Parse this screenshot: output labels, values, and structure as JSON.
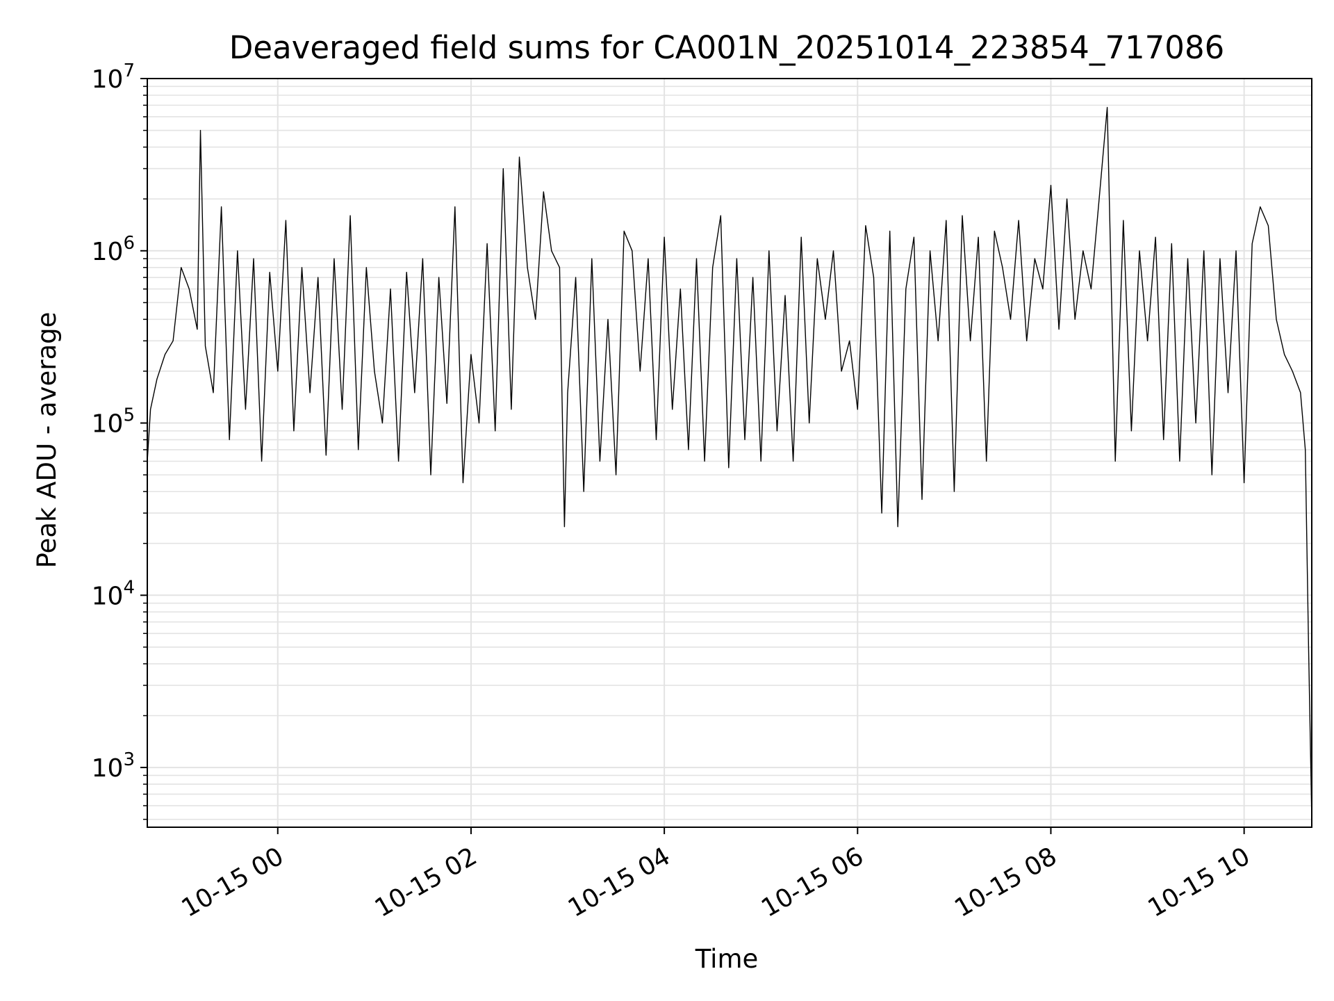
{
  "chart_data": {
    "type": "line",
    "title": "Deaveraged field sums for CA001N_20251014_223854_717086",
    "xlabel": "Time",
    "ylabel": "Peak ADU - average",
    "yscale": "log",
    "ylim": [
      450,
      10000000
    ],
    "xlim": [
      "2025-10-14 22:39",
      "2025-10-15 10:42"
    ],
    "grid": true,
    "line_color": "#000000",
    "grid_color": "#e3e3e3",
    "x_ticks": [
      "2025-10-15 00:00",
      "2025-10-15 02:00",
      "2025-10-15 04:00",
      "2025-10-15 06:00",
      "2025-10-15 08:00",
      "2025-10-15 10:00"
    ],
    "x_tick_labels": [
      "10-15 00",
      "10-15 02",
      "10-15 04",
      "10-15 06",
      "10-15 08",
      "10-15 10"
    ],
    "y_ticks": [
      1000,
      10000,
      100000,
      1000000,
      10000000
    ],
    "y_tick_labels": [
      {
        "base": "10",
        "exp": "3"
      },
      {
        "base": "10",
        "exp": "4"
      },
      {
        "base": "10",
        "exp": "5"
      },
      {
        "base": "10",
        "exp": "6"
      },
      {
        "base": "10",
        "exp": "7"
      }
    ],
    "x": [
      "2025-10-14 22:39",
      "2025-10-14 22:41",
      "2025-10-14 22:45",
      "2025-10-14 22:50",
      "2025-10-14 22:55",
      "2025-10-14 23:00",
      "2025-10-14 23:05",
      "2025-10-14 23:10",
      "2025-10-14 23:12",
      "2025-10-14 23:15",
      "2025-10-14 23:20",
      "2025-10-14 23:25",
      "2025-10-14 23:30",
      "2025-10-14 23:35",
      "2025-10-14 23:40",
      "2025-10-14 23:45",
      "2025-10-14 23:50",
      "2025-10-14 23:55",
      "2025-10-15 00:00",
      "2025-10-15 00:05",
      "2025-10-15 00:10",
      "2025-10-15 00:15",
      "2025-10-15 00:20",
      "2025-10-15 00:25",
      "2025-10-15 00:30",
      "2025-10-15 00:35",
      "2025-10-15 00:40",
      "2025-10-15 00:45",
      "2025-10-15 00:50",
      "2025-10-15 00:55",
      "2025-10-15 01:00",
      "2025-10-15 01:05",
      "2025-10-15 01:10",
      "2025-10-15 01:15",
      "2025-10-15 01:20",
      "2025-10-15 01:25",
      "2025-10-15 01:30",
      "2025-10-15 01:35",
      "2025-10-15 01:40",
      "2025-10-15 01:45",
      "2025-10-15 01:50",
      "2025-10-15 01:55",
      "2025-10-15 02:00",
      "2025-10-15 02:05",
      "2025-10-15 02:10",
      "2025-10-15 02:15",
      "2025-10-15 02:20",
      "2025-10-15 02:25",
      "2025-10-15 02:30",
      "2025-10-15 02:35",
      "2025-10-15 02:40",
      "2025-10-15 02:45",
      "2025-10-15 02:50",
      "2025-10-15 02:55",
      "2025-10-15 02:58",
      "2025-10-15 03:00",
      "2025-10-15 03:05",
      "2025-10-15 03:10",
      "2025-10-15 03:15",
      "2025-10-15 03:20",
      "2025-10-15 03:25",
      "2025-10-15 03:30",
      "2025-10-15 03:35",
      "2025-10-15 03:40",
      "2025-10-15 03:45",
      "2025-10-15 03:50",
      "2025-10-15 03:55",
      "2025-10-15 04:00",
      "2025-10-15 04:05",
      "2025-10-15 04:10",
      "2025-10-15 04:15",
      "2025-10-15 04:20",
      "2025-10-15 04:25",
      "2025-10-15 04:30",
      "2025-10-15 04:35",
      "2025-10-15 04:40",
      "2025-10-15 04:45",
      "2025-10-15 04:50",
      "2025-10-15 04:55",
      "2025-10-15 05:00",
      "2025-10-15 05:05",
      "2025-10-15 05:10",
      "2025-10-15 05:15",
      "2025-10-15 05:20",
      "2025-10-15 05:25",
      "2025-10-15 05:30",
      "2025-10-15 05:35",
      "2025-10-15 05:40",
      "2025-10-15 05:45",
      "2025-10-15 05:50",
      "2025-10-15 05:55",
      "2025-10-15 06:00",
      "2025-10-15 06:05",
      "2025-10-15 06:10",
      "2025-10-15 06:15",
      "2025-10-15 06:20",
      "2025-10-15 06:25",
      "2025-10-15 06:30",
      "2025-10-15 06:35",
      "2025-10-15 06:40",
      "2025-10-15 06:45",
      "2025-10-15 06:50",
      "2025-10-15 06:55",
      "2025-10-15 07:00",
      "2025-10-15 07:05",
      "2025-10-15 07:10",
      "2025-10-15 07:15",
      "2025-10-15 07:20",
      "2025-10-15 07:25",
      "2025-10-15 07:30",
      "2025-10-15 07:35",
      "2025-10-15 07:40",
      "2025-10-15 07:45",
      "2025-10-15 07:50",
      "2025-10-15 07:55",
      "2025-10-15 08:00",
      "2025-10-15 08:05",
      "2025-10-15 08:10",
      "2025-10-15 08:15",
      "2025-10-15 08:20",
      "2025-10-15 08:25",
      "2025-10-15 08:30",
      "2025-10-15 08:35",
      "2025-10-15 08:40",
      "2025-10-15 08:45",
      "2025-10-15 08:50",
      "2025-10-15 08:55",
      "2025-10-15 09:00",
      "2025-10-15 09:05",
      "2025-10-15 09:10",
      "2025-10-15 09:15",
      "2025-10-15 09:20",
      "2025-10-15 09:25",
      "2025-10-15 09:30",
      "2025-10-15 09:35",
      "2025-10-15 09:40",
      "2025-10-15 09:45",
      "2025-10-15 09:50",
      "2025-10-15 09:55",
      "2025-10-15 10:00",
      "2025-10-15 10:05",
      "2025-10-15 10:10",
      "2025-10-15 10:15",
      "2025-10-15 10:20",
      "2025-10-15 10:25",
      "2025-10-15 10:30",
      "2025-10-15 10:35",
      "2025-10-15 10:38",
      "2025-10-15 10:40",
      "2025-10-15 10:42"
    ],
    "y": [
      60000,
      120000,
      180000,
      250000,
      300000,
      800000,
      600000,
      350000,
      5000000,
      280000,
      150000,
      1800000,
      80000,
      1000000,
      120000,
      900000,
      60000,
      750000,
      200000,
      1500000,
      90000,
      800000,
      150000,
      700000,
      65000,
      900000,
      120000,
      1600000,
      70000,
      800000,
      200000,
      100000,
      600000,
      60000,
      750000,
      150000,
      900000,
      50000,
      700000,
      130000,
      1800000,
      45000,
      250000,
      100000,
      1100000,
      90000,
      3000000,
      120000,
      3500000,
      800000,
      400000,
      2200000,
      1000000,
      800000,
      25000,
      150000,
      700000,
      40000,
      900000,
      60000,
      400000,
      50000,
      1300000,
      1000000,
      200000,
      900000,
      80000,
      1200000,
      120000,
      600000,
      70000,
      900000,
      60000,
      800000,
      1600000,
      55000,
      900000,
      80000,
      700000,
      60000,
      1000000,
      90000,
      550000,
      60000,
      1200000,
      100000,
      900000,
      400000,
      1000000,
      200000,
      300000,
      120000,
      1400000,
      700000,
      30000,
      1300000,
      25000,
      600000,
      1200000,
      36000,
      1000000,
      300000,
      1500000,
      40000,
      1600000,
      300000,
      1200000,
      60000,
      1300000,
      800000,
      400000,
      1500000,
      300000,
      900000,
      600000,
      2400000,
      350000,
      2000000,
      400000,
      1000000,
      600000,
      2000000,
      6800000,
      60000,
      1500000,
      90000,
      1000000,
      300000,
      1200000,
      80000,
      1100000,
      60000,
      900000,
      100000,
      1000000,
      50000,
      900000,
      150000,
      1000000,
      45000,
      1100000,
      1800000,
      1400000,
      400000,
      250000,
      200000,
      150000,
      70000,
      5000,
      500
    ]
  }
}
